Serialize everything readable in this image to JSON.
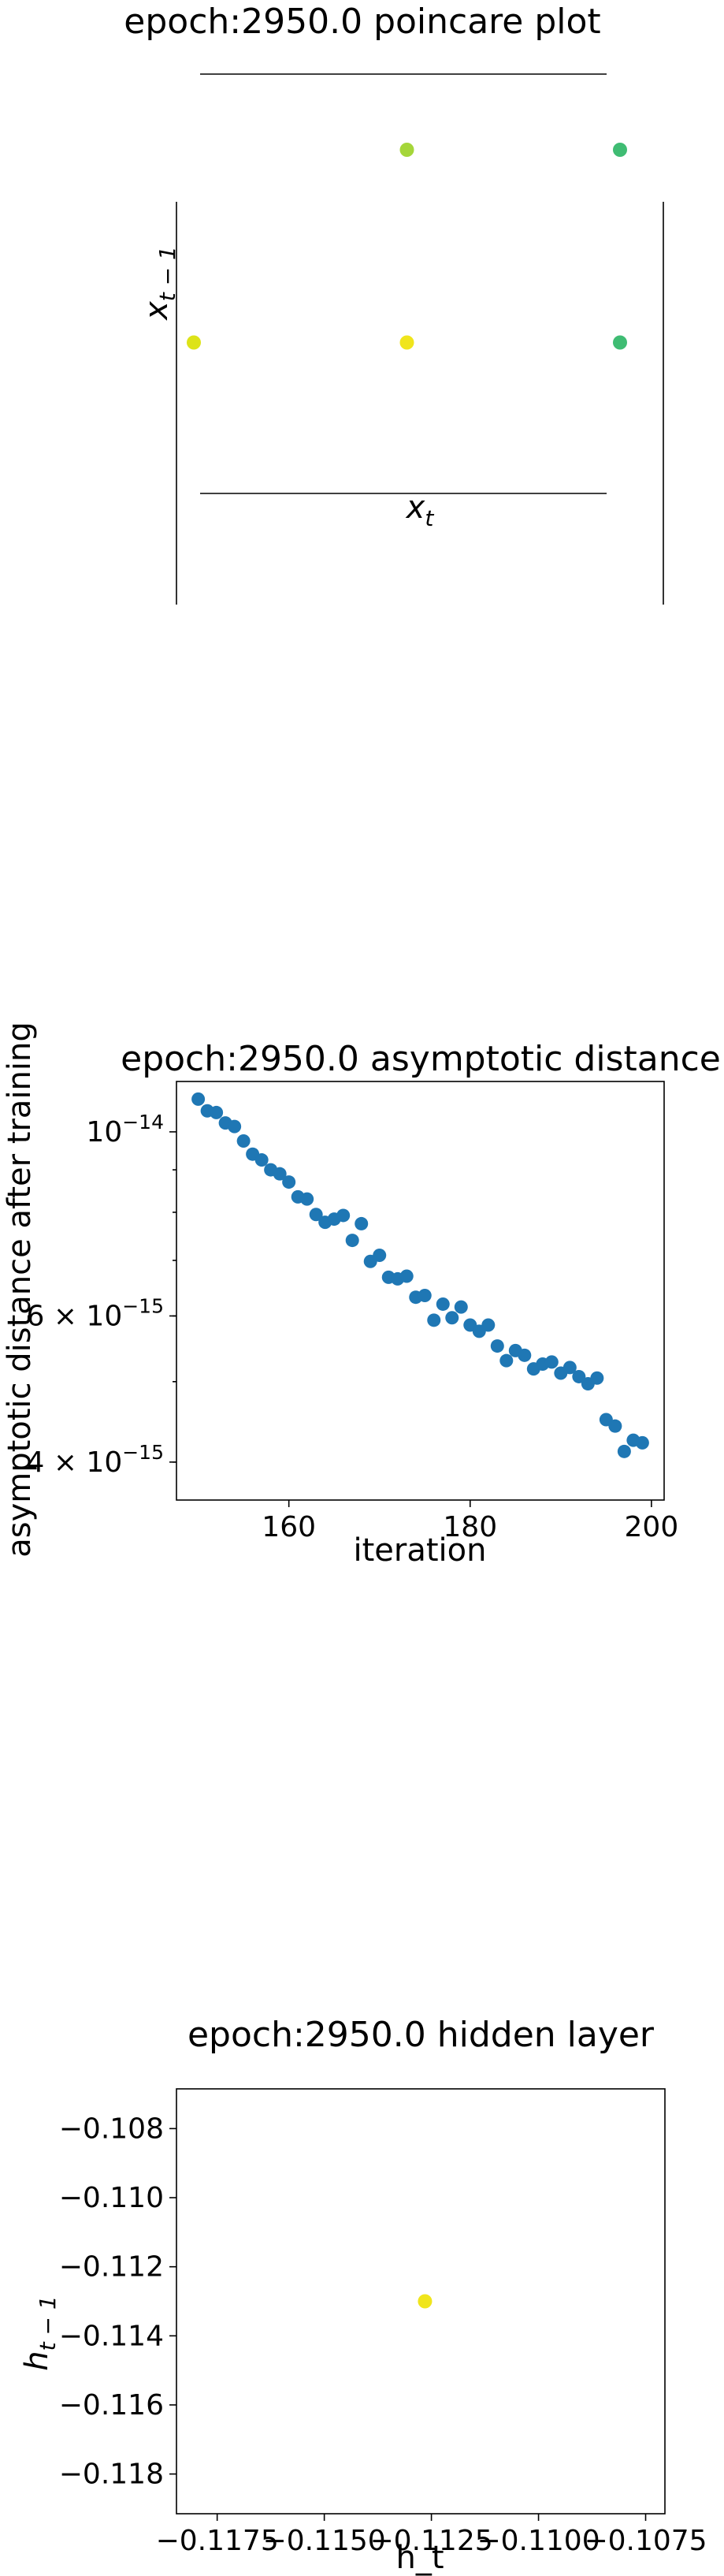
{
  "chart_data": [
    {
      "type": "scatter",
      "title": "epoch:2950.0 poincare plot",
      "xlabel": "x_t",
      "ylabel": "x_{t-1}",
      "xlabel_base": "x",
      "xlabel_sub": "t",
      "ylabel_base": "x",
      "ylabel_sub": "t − 1",
      "axes": "off",
      "points": [
        {
          "x": 1,
          "y": 2,
          "color": "#a5d63a"
        },
        {
          "x": 2,
          "y": 2,
          "color": "#3fbc73"
        },
        {
          "x": 0,
          "y": 1,
          "color": "#dde318"
        },
        {
          "x": 1,
          "y": 1,
          "color": "#f0e51c"
        },
        {
          "x": 2,
          "y": 1,
          "color": "#3fbc73"
        }
      ],
      "xlim": [
        0,
        2
      ],
      "ylim": [
        0,
        2
      ]
    },
    {
      "type": "scatter",
      "title": "epoch:2950.0 asymptotic distance",
      "xlabel": "iteration",
      "ylabel": "asymptotic distance after training",
      "yscale": "log",
      "color": "#1f77b4",
      "xlim": [
        147.6,
        201.4
      ],
      "ylim": [
        3.6e-15,
        1.15e-14
      ],
      "xticks": [
        "160",
        "180",
        "200"
      ],
      "xtick_values": [
        160,
        180,
        200
      ],
      "yticks": [
        {
          "value": 1e-14,
          "mant": "10",
          "exp": "−14"
        },
        {
          "value": 6e-15,
          "mant": "6 × 10",
          "exp": "−15"
        },
        {
          "value": 4e-15,
          "mant": "4 × 10",
          "exp": "−15"
        }
      ],
      "x": [
        150,
        151,
        152,
        153,
        154,
        155,
        156,
        157,
        158,
        159,
        160,
        161,
        162,
        163,
        164,
        165,
        166,
        167,
        168,
        169,
        170,
        171,
        172,
        173,
        174,
        175,
        176,
        177,
        178,
        179,
        180,
        181,
        182,
        183,
        184,
        185,
        186,
        187,
        188,
        189,
        190,
        191,
        192,
        193,
        194,
        195,
        196,
        197,
        198,
        199
      ],
      "y": [
        1.095e-14,
        1.06e-14,
        1.055e-14,
        1.025e-14,
        1.015e-14,
        9.75e-15,
        9.4e-15,
        9.25e-15,
        9e-15,
        8.9e-15,
        8.7e-15,
        8.35e-15,
        8.3e-15,
        7.95e-15,
        7.78e-15,
        7.85e-15,
        7.93e-15,
        7.4e-15,
        7.75e-15,
        6.98e-15,
        7.1e-15,
        6.68e-15,
        6.65e-15,
        6.7e-15,
        6.32e-15,
        6.35e-15,
        5.93e-15,
        6.2e-15,
        5.97e-15,
        6.15e-15,
        5.85e-15,
        5.75e-15,
        5.85e-15,
        5.52e-15,
        5.3e-15,
        5.45e-15,
        5.38e-15,
        5.18e-15,
        5.25e-15,
        5.28e-15,
        5.12e-15,
        5.2e-15,
        5.07e-15,
        4.97e-15,
        5.05e-15,
        4.5e-15,
        4.42e-15,
        4.12e-15,
        4.25e-15,
        4.22e-15
      ]
    },
    {
      "type": "scatter",
      "title": "epoch:2950.0 hidden layer",
      "xlabel": "h_t",
      "ylabel": "h_{t-1}",
      "ylabel_base": "h",
      "ylabel_sub": "t − 1",
      "xlim": [
        -0.11845,
        -0.10705
      ],
      "ylim": [
        -0.11915,
        -0.10685
      ],
      "xticks": [
        "−0.1175",
        "−0.1150",
        "−0.1125",
        "−0.1100",
        "−0.1075"
      ],
      "xtick_values": [
        -0.1175,
        -0.115,
        -0.1125,
        -0.11,
        -0.1075
      ],
      "yticks": [
        "−0.108",
        "−0.110",
        "−0.112",
        "−0.114",
        "−0.116",
        "−0.118"
      ],
      "ytick_values": [
        -0.108,
        -0.11,
        -0.112,
        -0.114,
        -0.116,
        -0.118
      ],
      "points": [
        {
          "x": -0.11265,
          "y": -0.113,
          "color": "#f0e51c"
        }
      ]
    }
  ]
}
